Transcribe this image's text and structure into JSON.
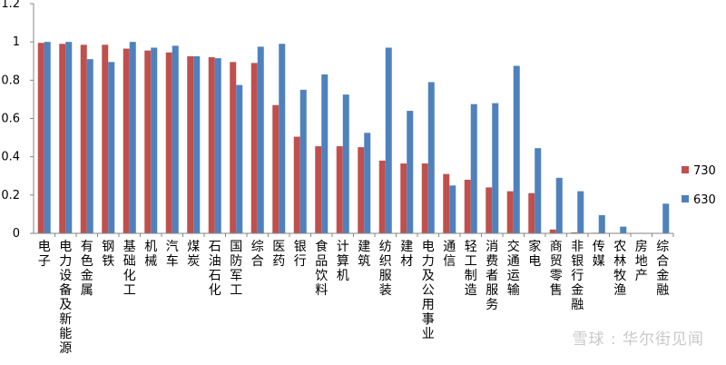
{
  "chart_data": {
    "type": "bar",
    "title": "",
    "xlabel": "",
    "ylabel": "",
    "ylim": [
      0,
      1.2
    ],
    "yticks": [
      "0",
      "0.2",
      "0.4",
      "0.6",
      "0.8",
      "1",
      "1.2"
    ],
    "grid": false,
    "legend_position": "right",
    "categories": [
      "电子",
      "电力设备及新能源",
      "有色金属",
      "钢铁",
      "基础化工",
      "机械",
      "汽车",
      "煤炭",
      "石油石化",
      "国防军工",
      "综合",
      "医药",
      "银行",
      "食品饮料",
      "计算机",
      "建筑",
      "纺织服装",
      "建材",
      "电力及公用事业",
      "通信",
      "轻工制造",
      "消费者服务",
      "交通运输",
      "家电",
      "商贸零售",
      "非银行金融",
      "传媒",
      "农林牧渔",
      "房地产",
      "综合金融"
    ],
    "series": [
      {
        "name": "730",
        "color": "#c0504d",
        "values": [
          0.995,
          0.99,
          0.985,
          0.985,
          0.965,
          0.955,
          0.945,
          0.925,
          0.92,
          0.895,
          0.89,
          0.67,
          0.505,
          0.455,
          0.455,
          0.45,
          0.38,
          0.365,
          0.365,
          0.31,
          0.28,
          0.24,
          0.22,
          0.21,
          0.02,
          0.005,
          0.003,
          0.002,
          0.001,
          0.001
        ]
      },
      {
        "name": "630",
        "color": "#4f81bd",
        "values": [
          1.0,
          1.0,
          0.91,
          0.895,
          1.0,
          0.97,
          0.98,
          0.925,
          0.915,
          0.775,
          0.975,
          0.99,
          0.75,
          0.83,
          0.725,
          0.525,
          0.97,
          0.64,
          0.79,
          0.25,
          0.675,
          0.68,
          0.875,
          0.445,
          0.29,
          0.22,
          0.095,
          0.035,
          0.0,
          0.155
        ]
      }
    ]
  },
  "watermark": {
    "text": "雪球 : 华尔街见闻"
  }
}
